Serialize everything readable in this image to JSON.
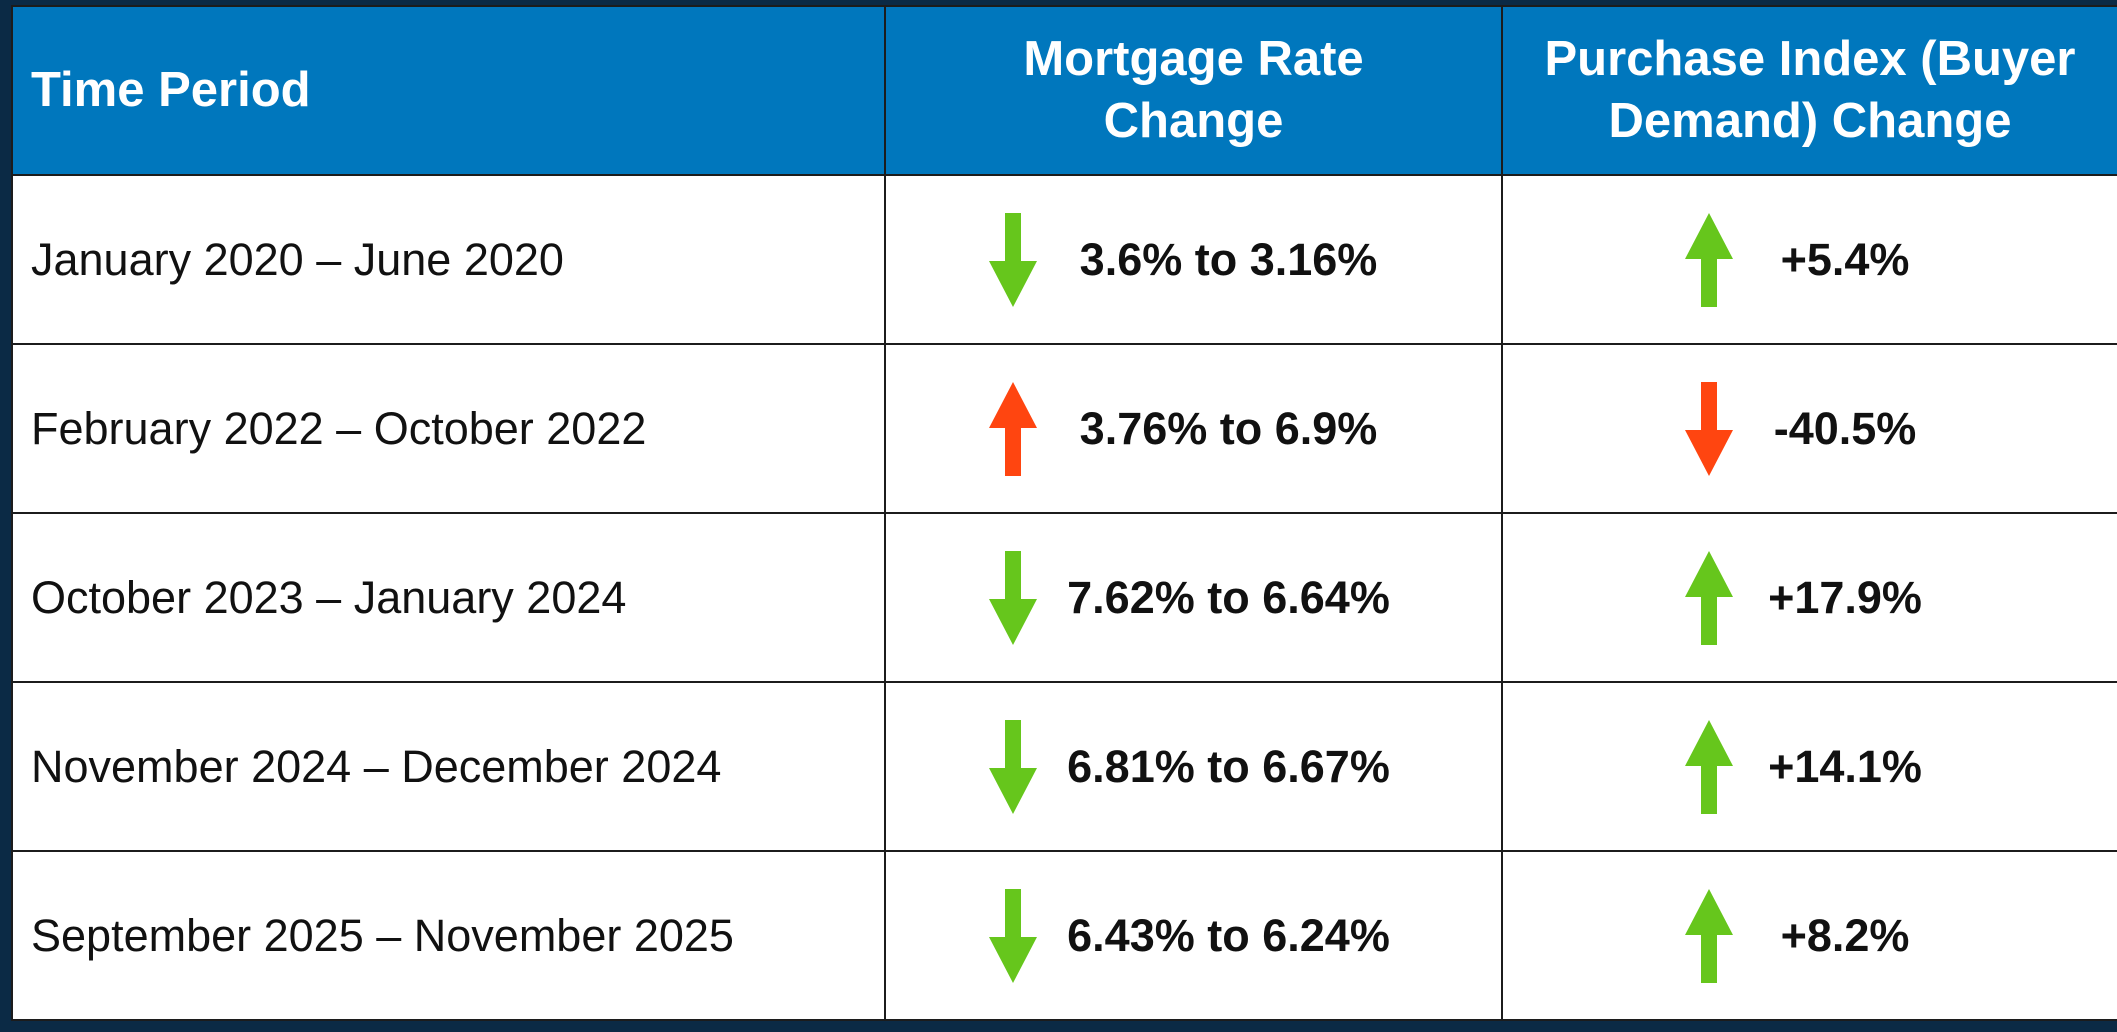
{
  "table": {
    "header": [
      "Time Period",
      "Mortgage Rate Change",
      "Purchase Index (Buyer Demand) Change"
    ],
    "rows": [
      [
        "January 2020 – June 2020",
        "3.6% to 3.16%",
        "+5.4%"
      ],
      [
        "February 2022 – October 2022",
        "3.76% to 6.9%",
        "-40.5%"
      ],
      [
        "October 2023 – January 2024",
        "7.62% to 6.64%",
        "+17.9%"
      ],
      [
        "November 2024 – December 2024",
        "6.81% to 6.67%",
        "+14.1%"
      ],
      [
        "September 2025 – November 2025",
        "6.43% to 6.24%",
        "+8.2%"
      ]
    ]
  }
}
